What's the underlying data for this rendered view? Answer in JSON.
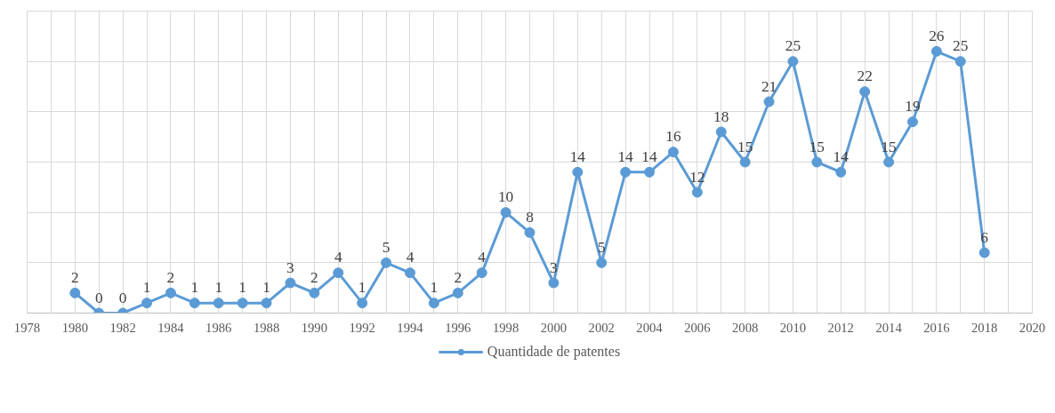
{
  "chart_data": {
    "type": "line",
    "x": [
      1980,
      1981,
      1982,
      1983,
      1984,
      1985,
      1986,
      1987,
      1988,
      1989,
      1990,
      1991,
      1992,
      1993,
      1994,
      1995,
      1996,
      1997,
      1998,
      1999,
      2000,
      2001,
      2002,
      2003,
      2004,
      2005,
      2006,
      2007,
      2008,
      2009,
      2010,
      2011,
      2012,
      2013,
      2014,
      2015,
      2016,
      2017,
      2018
    ],
    "series": [
      {
        "name": "Quantidade de patentes",
        "color": "#5b9bd5",
        "values": [
          2,
          0,
          0,
          1,
          2,
          1,
          1,
          1,
          1,
          3,
          2,
          4,
          1,
          5,
          4,
          1,
          2,
          4,
          10,
          8,
          3,
          14,
          5,
          14,
          14,
          16,
          12,
          18,
          15,
          21,
          25,
          15,
          14,
          22,
          15,
          19,
          26,
          25,
          6
        ]
      }
    ],
    "xlim": [
      1978,
      2020
    ],
    "xticks": [
      1978,
      {
        "value": 1979,
        "label": null
      },
      1980,
      {
        "value": 1981,
        "label": null
      },
      1982,
      {
        "value": 1983,
        "label": null
      },
      1984,
      {
        "value": 1985,
        "label": null
      },
      1986,
      {
        "value": 1987,
        "label": null
      },
      1988,
      {
        "value": 1989,
        "label": null
      },
      1990,
      {
        "value": 1991,
        "label": null
      },
      1992,
      {
        "value": 1993,
        "label": null
      },
      1994,
      {
        "value": 1995,
        "label": null
      },
      1996,
      {
        "value": 1997,
        "label": null
      },
      1998,
      {
        "value": 1999,
        "label": null
      },
      2000,
      {
        "value": 2001,
        "label": null
      },
      2002,
      {
        "value": 2003,
        "label": null
      },
      2004,
      {
        "value": 2005,
        "label": null
      },
      2006,
      {
        "value": 2007,
        "label": null
      },
      2008,
      {
        "value": 2009,
        "label": null
      },
      2010,
      {
        "value": 2011,
        "label": null
      },
      2012,
      {
        "value": 2013,
        "label": null
      },
      2014,
      {
        "value": 2015,
        "label": null
      },
      2016,
      {
        "value": 2017,
        "label": null
      },
      2018,
      {
        "value": 2019,
        "label": null
      },
      2020
    ],
    "ylim": [
      0,
      30
    ],
    "yticks": [
      {
        "value": 0,
        "label": null
      },
      {
        "value": 5,
        "label": null
      },
      {
        "value": 10,
        "label": null
      },
      {
        "value": 15,
        "label": null
      },
      {
        "value": 20,
        "label": null
      },
      {
        "value": 25,
        "label": null
      },
      {
        "value": 30,
        "label": null
      }
    ],
    "tick_labels": "x",
    "grid": true,
    "legend": "bottom",
    "marker": "circle",
    "line_style": "solid",
    "data_labels": true
  }
}
